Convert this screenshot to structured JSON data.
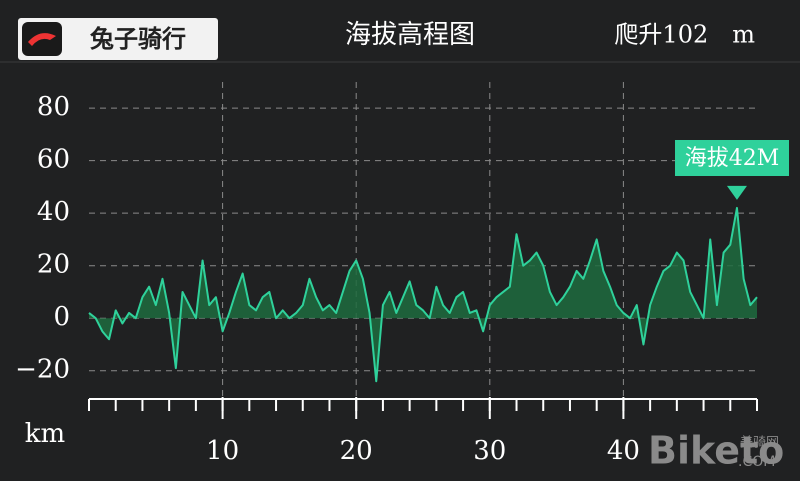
{
  "chart_data": {
    "type": "area",
    "logo": "兔子骑行",
    "title": "海拔高程图",
    "climb": "爬升102　m",
    "xlabel": "km",
    "color": "#2fd19b",
    "fill": "#1e6b3e",
    "xlim": [
      0,
      50
    ],
    "ylim": [
      -30,
      85
    ],
    "xticks": [
      10,
      20,
      30,
      40
    ],
    "xminor_ticks": [
      0,
      2,
      4,
      6,
      8,
      10,
      12,
      14,
      16,
      18,
      20,
      22,
      24,
      26,
      28,
      30,
      32,
      34,
      36,
      38,
      40,
      42,
      44,
      46,
      48,
      50
    ],
    "yticks": [
      80,
      60,
      40,
      20,
      0,
      {
        "value": -20,
        "label": "−20"
      }
    ],
    "grid": true,
    "x": [
      0,
      0.5,
      1,
      1.5,
      2,
      2.5,
      3,
      3.5,
      4,
      4.5,
      5,
      5.5,
      6,
      6.5,
      7,
      7.5,
      8,
      8.5,
      9,
      9.5,
      10,
      10.5,
      11,
      11.5,
      12,
      12.5,
      13,
      13.5,
      14,
      14.5,
      15,
      15.5,
      16,
      16.5,
      17,
      17.5,
      18,
      18.5,
      19,
      19.5,
      20,
      20.5,
      21,
      21.5,
      22,
      22.5,
      23,
      23.5,
      24,
      24.5,
      25,
      25.5,
      26,
      26.5,
      27,
      27.5,
      28,
      28.5,
      29,
      29.5,
      30,
      30.5,
      31,
      31.5,
      32,
      32.5,
      33,
      33.5,
      34,
      34.5,
      35,
      35.5,
      36,
      36.5,
      37,
      37.5,
      38,
      38.5,
      39,
      39.5,
      40,
      40.5,
      41,
      41.5,
      42,
      42.5,
      43,
      43.5,
      44,
      44.5,
      45,
      45.5,
      46,
      46.5,
      47,
      47.5,
      48,
      48.5,
      49,
      49.5,
      50
    ],
    "values": [
      2,
      0,
      -5,
      -8,
      3,
      -2,
      2,
      0,
      8,
      12,
      5,
      15,
      2,
      -19,
      10,
      5,
      0,
      22,
      5,
      8,
      -5,
      2,
      10,
      17,
      5,
      3,
      8,
      10,
      0,
      3,
      0,
      2,
      5,
      15,
      8,
      3,
      5,
      2,
      10,
      18,
      22,
      15,
      2,
      -24,
      5,
      10,
      2,
      8,
      14,
      5,
      3,
      0,
      12,
      5,
      2,
      8,
      10,
      2,
      3,
      -5,
      5,
      8,
      10,
      12,
      32,
      20,
      22,
      25,
      20,
      10,
      5,
      8,
      12,
      18,
      15,
      22,
      30,
      18,
      12,
      5,
      2,
      0,
      5,
      -10,
      5,
      12,
      18,
      20,
      25,
      22,
      10,
      5,
      0,
      30,
      5,
      25,
      28,
      42,
      15,
      5,
      8
    ],
    "annotation": {
      "text": "海拔42M",
      "x": 48.5,
      "y": 42
    },
    "watermark": [
      "Biketo",
      "美骑网",
      ".COM"
    ]
  }
}
